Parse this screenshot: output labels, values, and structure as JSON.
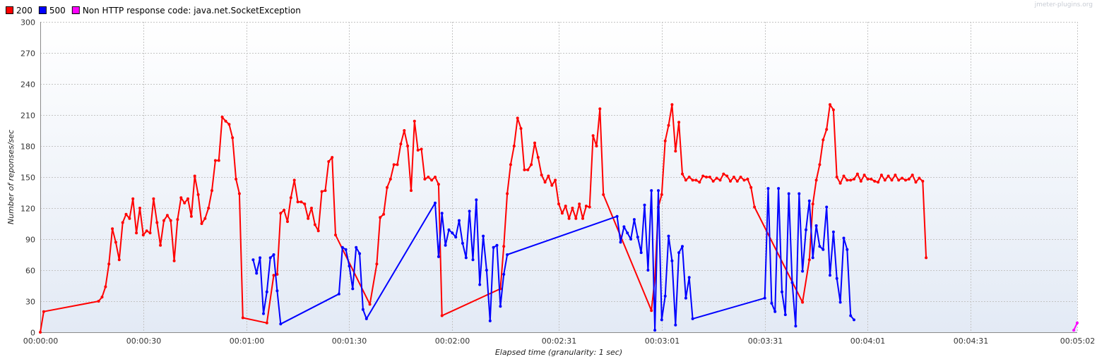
{
  "watermark": "jmeter-plugins.org",
  "chart_data": {
    "type": "line",
    "xlabel": "Elapsed time (granularity: 1 sec)",
    "ylabel": "Number of reponses/sec",
    "ylim": [
      0,
      300
    ],
    "xlim": [
      0,
      302
    ],
    "grid": true,
    "legend_position": "top-left",
    "y_ticks": [
      0,
      30,
      60,
      90,
      120,
      150,
      180,
      210,
      240,
      270,
      300
    ],
    "x_ticks": [
      {
        "t": 0,
        "label": "00:00:00"
      },
      {
        "t": 30,
        "label": "00:00:30"
      },
      {
        "t": 60,
        "label": "00:01:00"
      },
      {
        "t": 90,
        "label": "00:01:30"
      },
      {
        "t": 120,
        "label": "00:02:00"
      },
      {
        "t": 151,
        "label": "00:02:31"
      },
      {
        "t": 181,
        "label": "00:03:01"
      },
      {
        "t": 211,
        "label": "00:03:31"
      },
      {
        "t": 241,
        "label": "00:04:01"
      },
      {
        "t": 271,
        "label": "00:04:31"
      },
      {
        "t": 302,
        "label": "00:05:02"
      }
    ],
    "series": [
      {
        "name": "200",
        "color": "#ff0000",
        "points": [
          [
            0,
            0
          ],
          [
            1,
            20
          ],
          [
            17,
            30
          ],
          [
            18,
            34
          ],
          [
            19,
            44
          ],
          [
            20,
            66
          ],
          [
            21,
            100
          ],
          [
            22,
            87
          ],
          [
            23,
            70
          ],
          [
            24,
            106
          ],
          [
            25,
            114
          ],
          [
            26,
            110
          ],
          [
            27,
            129
          ],
          [
            28,
            96
          ],
          [
            29,
            120
          ],
          [
            30,
            94
          ],
          [
            31,
            98
          ],
          [
            32,
            96
          ],
          [
            33,
            129
          ],
          [
            34,
            106
          ],
          [
            35,
            84
          ],
          [
            36,
            108
          ],
          [
            37,
            113
          ],
          [
            38,
            108
          ],
          [
            39,
            69
          ],
          [
            40,
            109
          ],
          [
            41,
            130
          ],
          [
            42,
            125
          ],
          [
            43,
            129
          ],
          [
            44,
            112
          ],
          [
            45,
            151
          ],
          [
            46,
            133
          ],
          [
            47,
            105
          ],
          [
            48,
            110
          ],
          [
            49,
            120
          ],
          [
            50,
            137
          ],
          [
            51,
            166
          ],
          [
            52,
            166
          ],
          [
            53,
            208
          ],
          [
            54,
            204
          ],
          [
            55,
            201
          ],
          [
            56,
            188
          ],
          [
            57,
            148
          ],
          [
            58,
            134
          ],
          [
            59,
            14
          ],
          [
            66,
            9
          ],
          [
            68,
            55
          ],
          [
            69,
            56
          ],
          [
            70,
            115
          ],
          [
            71,
            118
          ],
          [
            72,
            107
          ],
          [
            73,
            130
          ],
          [
            74,
            147
          ],
          [
            75,
            126
          ],
          [
            76,
            126
          ],
          [
            77,
            124
          ],
          [
            78,
            110
          ],
          [
            79,
            120
          ],
          [
            80,
            104
          ],
          [
            81,
            98
          ],
          [
            82,
            136
          ],
          [
            83,
            137
          ],
          [
            84,
            165
          ],
          [
            85,
            169
          ],
          [
            86,
            94
          ],
          [
            96,
            27
          ],
          [
            98,
            66
          ],
          [
            99,
            111
          ],
          [
            100,
            114
          ],
          [
            101,
            140
          ],
          [
            102,
            148
          ],
          [
            103,
            162
          ],
          [
            104,
            162
          ],
          [
            105,
            182
          ],
          [
            106,
            195
          ],
          [
            107,
            180
          ],
          [
            108,
            137
          ],
          [
            109,
            204
          ],
          [
            110,
            176
          ],
          [
            111,
            177
          ],
          [
            112,
            148
          ],
          [
            113,
            150
          ],
          [
            114,
            147
          ],
          [
            115,
            150
          ],
          [
            116,
            143
          ],
          [
            117,
            16
          ],
          [
            134,
            42
          ],
          [
            135,
            83
          ],
          [
            136,
            134
          ],
          [
            137,
            162
          ],
          [
            138,
            180
          ],
          [
            139,
            207
          ],
          [
            140,
            197
          ],
          [
            141,
            157
          ],
          [
            142,
            157
          ],
          [
            143,
            162
          ],
          [
            144,
            183
          ],
          [
            145,
            169
          ],
          [
            146,
            152
          ],
          [
            147,
            145
          ],
          [
            148,
            151
          ],
          [
            149,
            142
          ],
          [
            150,
            147
          ],
          [
            151,
            124
          ],
          [
            152,
            115
          ],
          [
            153,
            122
          ],
          [
            154,
            110
          ],
          [
            155,
            120
          ],
          [
            156,
            110
          ],
          [
            157,
            124
          ],
          [
            158,
            110
          ],
          [
            159,
            122
          ],
          [
            160,
            121
          ],
          [
            161,
            190
          ],
          [
            162,
            180
          ],
          [
            163,
            216
          ],
          [
            164,
            133
          ],
          [
            178,
            21
          ],
          [
            179,
            52
          ],
          [
            180,
            121
          ],
          [
            181,
            133
          ],
          [
            182,
            185
          ],
          [
            183,
            200
          ],
          [
            184,
            220
          ],
          [
            185,
            175
          ],
          [
            186,
            203
          ],
          [
            187,
            153
          ],
          [
            188,
            147
          ],
          [
            189,
            150
          ],
          [
            190,
            147
          ],
          [
            191,
            147
          ],
          [
            192,
            145
          ],
          [
            193,
            151
          ],
          [
            194,
            150
          ],
          [
            195,
            150
          ],
          [
            196,
            146
          ],
          [
            197,
            149
          ],
          [
            198,
            147
          ],
          [
            199,
            153
          ],
          [
            200,
            151
          ],
          [
            201,
            146
          ],
          [
            202,
            150
          ],
          [
            203,
            146
          ],
          [
            204,
            150
          ],
          [
            205,
            147
          ],
          [
            206,
            148
          ],
          [
            207,
            140
          ],
          [
            208,
            121
          ],
          [
            222,
            29
          ],
          [
            224,
            70
          ],
          [
            225,
            124
          ],
          [
            226,
            147
          ],
          [
            227,
            162
          ],
          [
            228,
            186
          ],
          [
            229,
            196
          ],
          [
            230,
            220
          ],
          [
            231,
            215
          ],
          [
            232,
            150
          ],
          [
            233,
            144
          ],
          [
            234,
            151
          ],
          [
            235,
            147
          ],
          [
            236,
            147
          ],
          [
            237,
            148
          ],
          [
            238,
            153
          ],
          [
            239,
            146
          ],
          [
            240,
            152
          ],
          [
            241,
            148
          ],
          [
            242,
            148
          ],
          [
            243,
            146
          ],
          [
            244,
            145
          ],
          [
            245,
            152
          ],
          [
            246,
            147
          ],
          [
            247,
            151
          ],
          [
            248,
            147
          ],
          [
            249,
            152
          ],
          [
            250,
            147
          ],
          [
            251,
            149
          ],
          [
            252,
            147
          ],
          [
            253,
            148
          ],
          [
            254,
            152
          ],
          [
            255,
            145
          ],
          [
            256,
            149
          ],
          [
            257,
            146
          ],
          [
            258,
            72
          ]
        ]
      },
      {
        "name": "500",
        "color": "#0000ff",
        "points": [
          [
            62,
            70
          ],
          [
            63,
            57
          ],
          [
            64,
            72
          ],
          [
            65,
            18
          ],
          [
            66,
            39
          ],
          [
            67,
            72
          ],
          [
            68,
            75
          ],
          [
            69,
            40
          ],
          [
            70,
            8
          ],
          [
            87,
            37
          ],
          [
            88,
            82
          ],
          [
            89,
            80
          ],
          [
            90,
            64
          ],
          [
            91,
            42
          ],
          [
            92,
            82
          ],
          [
            93,
            76
          ],
          [
            94,
            22
          ],
          [
            95,
            13
          ],
          [
            115,
            125
          ],
          [
            116,
            73
          ],
          [
            117,
            115
          ],
          [
            118,
            84
          ],
          [
            119,
            99
          ],
          [
            120,
            96
          ],
          [
            121,
            92
          ],
          [
            122,
            108
          ],
          [
            123,
            86
          ],
          [
            124,
            72
          ],
          [
            125,
            117
          ],
          [
            126,
            70
          ],
          [
            127,
            128
          ],
          [
            128,
            46
          ],
          [
            129,
            93
          ],
          [
            130,
            60
          ],
          [
            131,
            11
          ],
          [
            132,
            82
          ],
          [
            133,
            84
          ],
          [
            134,
            25
          ],
          [
            135,
            56
          ],
          [
            136,
            75
          ],
          [
            168,
            112
          ],
          [
            169,
            87
          ],
          [
            170,
            102
          ],
          [
            171,
            96
          ],
          [
            172,
            90
          ],
          [
            173,
            109
          ],
          [
            174,
            92
          ],
          [
            175,
            77
          ],
          [
            176,
            123
          ],
          [
            177,
            60
          ],
          [
            178,
            137
          ],
          [
            179,
            2
          ],
          [
            180,
            137
          ],
          [
            181,
            12
          ],
          [
            182,
            35
          ],
          [
            183,
            93
          ],
          [
            184,
            69
          ],
          [
            185,
            7
          ],
          [
            186,
            77
          ],
          [
            187,
            83
          ],
          [
            188,
            33
          ],
          [
            189,
            53
          ],
          [
            190,
            13
          ],
          [
            211,
            33
          ],
          [
            212,
            139
          ],
          [
            213,
            28
          ],
          [
            214,
            20
          ],
          [
            215,
            139
          ],
          [
            216,
            39
          ],
          [
            217,
            17
          ],
          [
            218,
            134
          ],
          [
            219,
            48
          ],
          [
            220,
            6
          ],
          [
            221,
            134
          ],
          [
            222,
            59
          ],
          [
            223,
            99
          ],
          [
            224,
            127
          ],
          [
            225,
            72
          ],
          [
            226,
            103
          ],
          [
            227,
            83
          ],
          [
            228,
            80
          ],
          [
            229,
            121
          ],
          [
            230,
            55
          ],
          [
            231,
            97
          ],
          [
            232,
            52
          ],
          [
            233,
            29
          ],
          [
            234,
            91
          ],
          [
            235,
            80
          ],
          [
            236,
            16
          ],
          [
            237,
            12
          ]
        ]
      },
      {
        "name": "Non HTTP response code: java.net.SocketException",
        "color": "#ff00ff",
        "points": [
          [
            301,
            2
          ],
          [
            302,
            9
          ]
        ]
      }
    ]
  }
}
